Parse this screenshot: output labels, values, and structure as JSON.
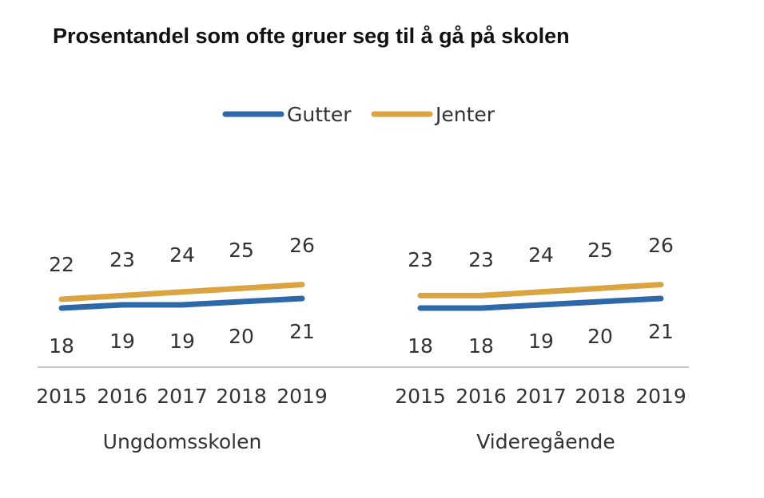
{
  "chart_data": {
    "type": "line",
    "title": "Prosentandel som ofte gruer seg til å gå på skolen",
    "legend": {
      "placement": "top-center"
    },
    "colors": {
      "Gutter": "#2e68a8",
      "Jenter": "#dba441",
      "axis": "#c8c8c8"
    },
    "series_names": [
      "Gutter",
      "Jenter"
    ],
    "panels": [
      {
        "group_label": "Ungdomsskolen",
        "categories": [
          "2015",
          "2016",
          "2017",
          "2018",
          "2019"
        ],
        "series": [
          {
            "name": "Gutter",
            "values": [
              18,
              19,
              19,
              20,
              21
            ]
          },
          {
            "name": "Jenter",
            "values": [
              22,
              23,
              24,
              25,
              26
            ]
          }
        ]
      },
      {
        "group_label": "Videregående",
        "categories": [
          "2015",
          "2016",
          "2017",
          "2018",
          "2019"
        ],
        "series": [
          {
            "name": "Gutter",
            "values": [
              18,
              18,
              19,
              20,
              21
            ]
          },
          {
            "name": "Jenter",
            "values": [
              23,
              23,
              24,
              25,
              26
            ]
          }
        ]
      }
    ],
    "grid": false
  }
}
